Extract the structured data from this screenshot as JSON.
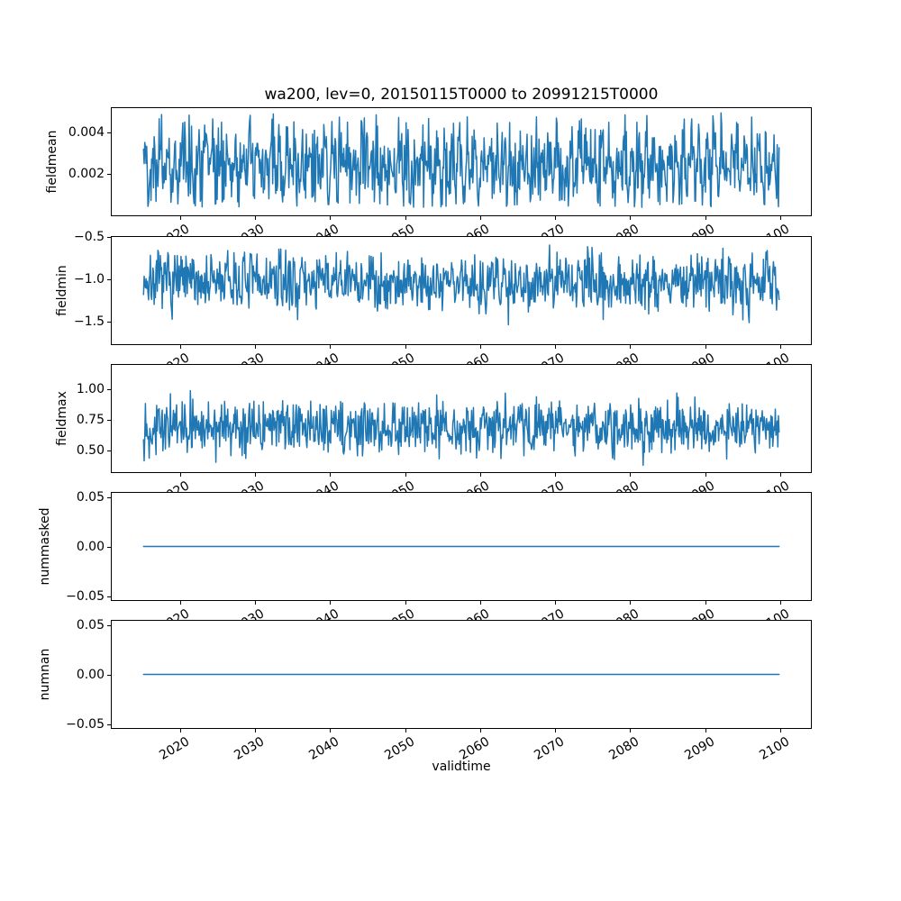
{
  "title": "wa200, lev=0, 20150115T0000 to 20991215T0000",
  "chart_data": {
    "type": "line",
    "title": "wa200, lev=0, 20150115T0000 to 20991215T0000",
    "xlabel": "validtime",
    "grid": false,
    "legend": "none",
    "line_color": "#1f77b4",
    "line_width": 1.5,
    "x_axis": {
      "time_start": "20150115T0000",
      "time_end": "20991215T0000",
      "t_start": 2015.042,
      "t_end": 2099.958,
      "n_points": 1020,
      "sampling": "monthly",
      "xlim": [
        2010.79,
        2104.21
      ],
      "tick_years": [
        2020,
        2030,
        2040,
        2050,
        2060,
        2070,
        2080,
        2090,
        2100
      ],
      "tick_labels": [
        "2020",
        "2030",
        "2040",
        "2050",
        "2060",
        "2070",
        "2080",
        "2090",
        "2100"
      ],
      "tick_rotation_deg": 30
    },
    "subplots": [
      {
        "name": "fieldmean",
        "ylabel": "fieldmean",
        "ylim": [
          -4e-05,
          0.00522
        ],
        "yticks": [
          {
            "v": 0.004,
            "label": "0.004"
          },
          {
            "v": 0.002,
            "label": "0.002"
          }
        ],
        "series": {
          "kind": "seasonal_noise",
          "seed": 42,
          "base": 0.0024,
          "seasonal_amp": 0.0007,
          "noise_sd": 0.001,
          "min": 0.00035,
          "max": 0.005
        },
        "approx_mean": 0.0024,
        "approx_min": 0.0004,
        "approx_max": 0.005
      },
      {
        "name": "fieldmin",
        "ylabel": "fieldmin",
        "ylim": [
          -1.78,
          -0.49
        ],
        "yticks": [
          {
            "v": -0.5,
            "label": "−0.5"
          },
          {
            "v": -1.0,
            "label": "−1.0"
          },
          {
            "v": -1.5,
            "label": "−1.5"
          }
        ],
        "series": {
          "kind": "seasonal_noise",
          "seed": 7,
          "base": -1.03,
          "seasonal_amp": 0.05,
          "noise_sd": 0.17,
          "min": -1.7,
          "max": -0.56
        },
        "approx_mean": -1.03,
        "approx_min": -1.7,
        "approx_max": -0.55
      },
      {
        "name": "fieldmax",
        "ylabel": "fieldmax",
        "ylim": [
          0.316,
          1.206
        ],
        "yticks": [
          {
            "v": 1.0,
            "label": "1.00"
          },
          {
            "v": 0.75,
            "label": "0.75"
          },
          {
            "v": 0.5,
            "label": "0.50"
          }
        ],
        "series": {
          "kind": "seasonal_noise",
          "seed": 13,
          "base": 0.69,
          "seasonal_amp": 0.03,
          "noise_sd": 0.105,
          "min": 0.37,
          "max": 1.15
        },
        "approx_mean": 0.69,
        "approx_min": 0.37,
        "approx_max": 1.16
      },
      {
        "name": "nummasked",
        "ylabel": "nummasked",
        "ylim": [
          -0.055,
          0.055
        ],
        "yticks": [
          {
            "v": 0.05,
            "label": "0.05"
          },
          {
            "v": 0.0,
            "label": "0.00"
          },
          {
            "v": -0.05,
            "label": "−0.05"
          }
        ],
        "series": {
          "kind": "constant",
          "value": 0
        },
        "approx_mean": 0,
        "approx_min": 0,
        "approx_max": 0
      },
      {
        "name": "numnan",
        "ylabel": "numnan",
        "ylim": [
          -0.055,
          0.055
        ],
        "yticks": [
          {
            "v": 0.05,
            "label": "0.05"
          },
          {
            "v": 0.0,
            "label": "0.00"
          },
          {
            "v": -0.05,
            "label": "−0.05"
          }
        ],
        "series": {
          "kind": "constant",
          "value": 0
        },
        "approx_mean": 0,
        "approx_min": 0,
        "approx_max": 0
      }
    ]
  }
}
